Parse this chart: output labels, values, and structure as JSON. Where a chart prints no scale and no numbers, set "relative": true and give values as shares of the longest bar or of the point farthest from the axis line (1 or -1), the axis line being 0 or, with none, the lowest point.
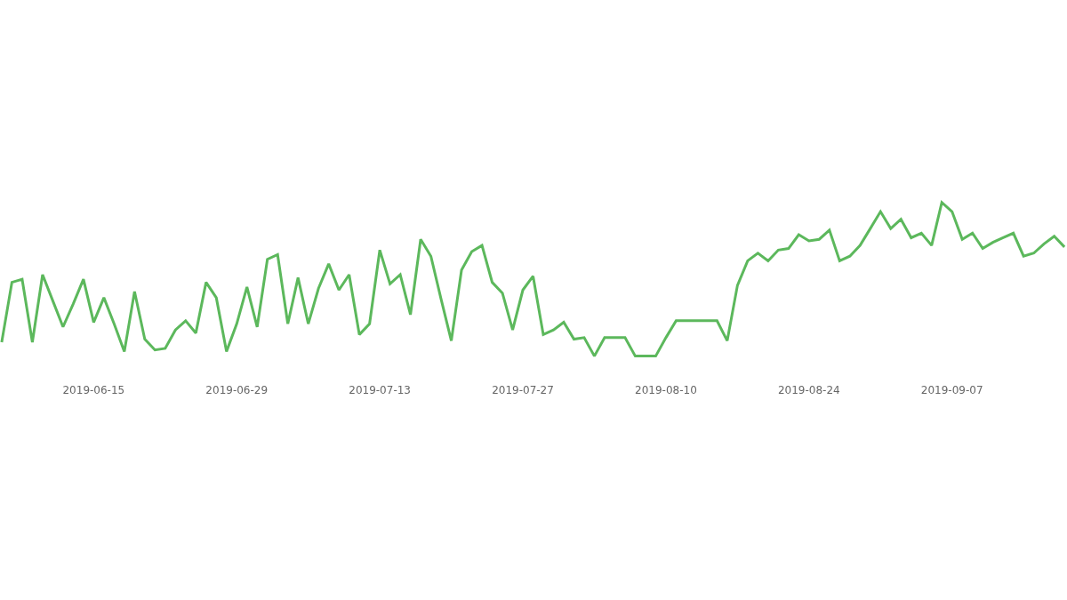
{
  "chart_data": {
    "type": "line",
    "relative": true,
    "x": [
      "2019-06-06",
      "2019-06-07",
      "2019-06-08",
      "2019-06-09",
      "2019-06-10",
      "2019-06-11",
      "2019-06-12",
      "2019-06-13",
      "2019-06-14",
      "2019-06-15",
      "2019-06-16",
      "2019-06-17",
      "2019-06-18",
      "2019-06-19",
      "2019-06-20",
      "2019-06-21",
      "2019-06-22",
      "2019-06-23",
      "2019-06-24",
      "2019-06-25",
      "2019-06-26",
      "2019-06-27",
      "2019-06-28",
      "2019-06-29",
      "2019-06-30",
      "2019-07-01",
      "2019-07-02",
      "2019-07-03",
      "2019-07-04",
      "2019-07-05",
      "2019-07-06",
      "2019-07-07",
      "2019-07-08",
      "2019-07-09",
      "2019-07-10",
      "2019-07-11",
      "2019-07-12",
      "2019-07-13",
      "2019-07-14",
      "2019-07-15",
      "2019-07-16",
      "2019-07-17",
      "2019-07-18",
      "2019-07-19",
      "2019-07-20",
      "2019-07-21",
      "2019-07-22",
      "2019-07-23",
      "2019-07-24",
      "2019-07-25",
      "2019-07-26",
      "2019-07-27",
      "2019-07-28",
      "2019-07-29",
      "2019-07-30",
      "2019-07-31",
      "2019-08-01",
      "2019-08-02",
      "2019-08-03",
      "2019-08-04",
      "2019-08-05",
      "2019-08-06",
      "2019-08-07",
      "2019-08-08",
      "2019-08-09",
      "2019-08-10",
      "2019-08-11",
      "2019-08-12",
      "2019-08-13",
      "2019-08-14",
      "2019-08-15",
      "2019-08-16",
      "2019-08-17",
      "2019-08-18",
      "2019-08-19",
      "2019-08-20",
      "2019-08-21",
      "2019-08-22",
      "2019-08-23",
      "2019-08-24",
      "2019-08-25",
      "2019-08-26",
      "2019-08-27",
      "2019-08-28",
      "2019-08-29",
      "2019-08-30",
      "2019-08-31",
      "2019-09-01",
      "2019-09-02",
      "2019-09-03",
      "2019-09-04",
      "2019-09-05",
      "2019-09-06",
      "2019-09-07",
      "2019-09-08",
      "2019-09-09",
      "2019-09-10",
      "2019-09-11",
      "2019-09-12",
      "2019-09-13",
      "2019-09-14",
      "2019-09-15",
      "2019-09-16",
      "2019-09-17",
      "2019-09-18"
    ],
    "series": [
      {
        "color": "#5cb85c",
        "values": [
          0.09,
          0.48,
          0.5,
          0.09,
          0.53,
          0.36,
          0.19,
          0.34,
          0.5,
          0.22,
          0.38,
          0.21,
          0.03,
          0.42,
          0.11,
          0.04,
          0.05,
          0.17,
          0.23,
          0.15,
          0.48,
          0.38,
          0.03,
          0.21,
          0.45,
          0.19,
          0.63,
          0.66,
          0.21,
          0.51,
          0.21,
          0.44,
          0.6,
          0.43,
          0.53,
          0.14,
          0.21,
          0.69,
          0.47,
          0.53,
          0.27,
          0.76,
          0.65,
          0.37,
          0.1,
          0.56,
          0.68,
          0.72,
          0.48,
          0.41,
          0.17,
          0.43,
          0.52,
          0.14,
          0.17,
          0.22,
          0.11,
          0.12,
          0.0,
          0.12,
          0.12,
          0.12,
          0.0,
          0.0,
          0.0,
          0.12,
          0.23,
          0.23,
          0.23,
          0.23,
          0.23,
          0.1,
          0.46,
          0.62,
          0.67,
          0.62,
          0.69,
          0.7,
          0.79,
          0.75,
          0.76,
          0.82,
          0.62,
          0.65,
          0.72,
          0.83,
          0.94,
          0.83,
          0.89,
          0.77,
          0.8,
          0.72,
          1.0,
          0.94,
          0.76,
          0.8,
          0.7,
          0.74,
          0.77,
          0.8,
          0.65,
          0.67,
          0.73,
          0.78,
          0.71
        ]
      }
    ],
    "xlim": [
      "2019-06-05T20:00",
      "2019-09-18T06:00"
    ],
    "xticks": [
      "2019-06-15",
      "2019-06-29",
      "2019-07-13",
      "2019-07-27",
      "2019-08-10",
      "2019-08-24",
      "2019-09-07"
    ],
    "marker": "none",
    "line_style": "solid"
  }
}
